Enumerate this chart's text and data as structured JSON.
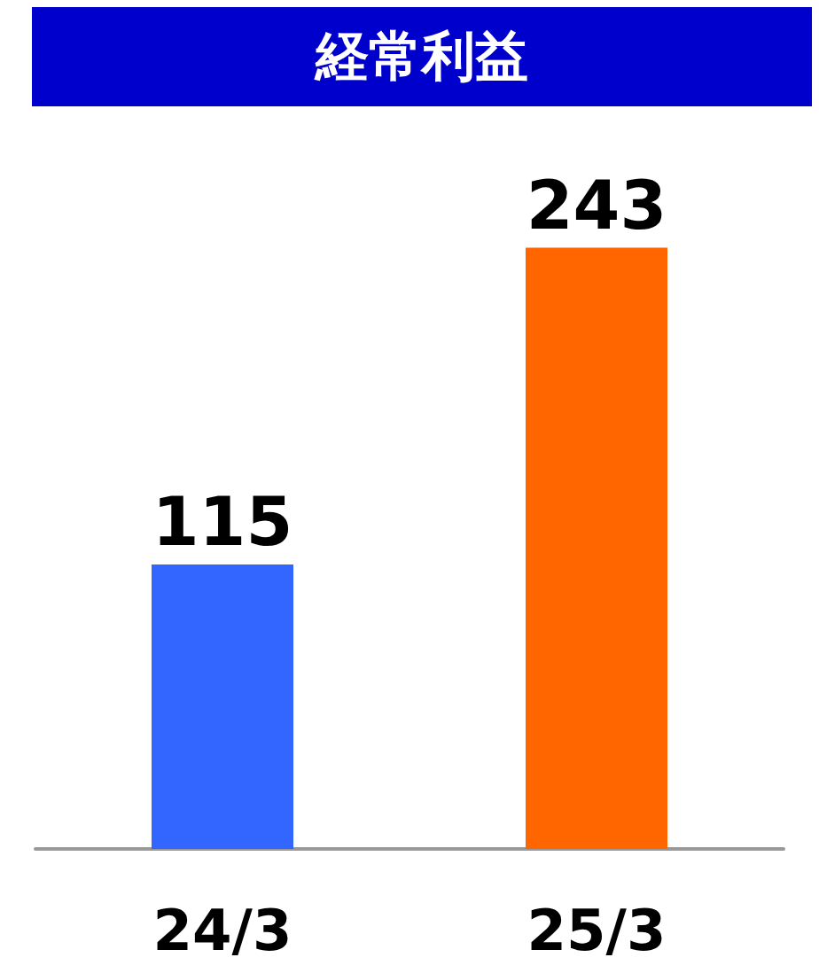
{
  "chart_data": {
    "type": "bar",
    "title": "経常利益",
    "categories": [
      "24/3",
      "25/3"
    ],
    "values": [
      115,
      243
    ],
    "colors": [
      "#3366ff",
      "#ff6600"
    ],
    "data_labels": true
  }
}
